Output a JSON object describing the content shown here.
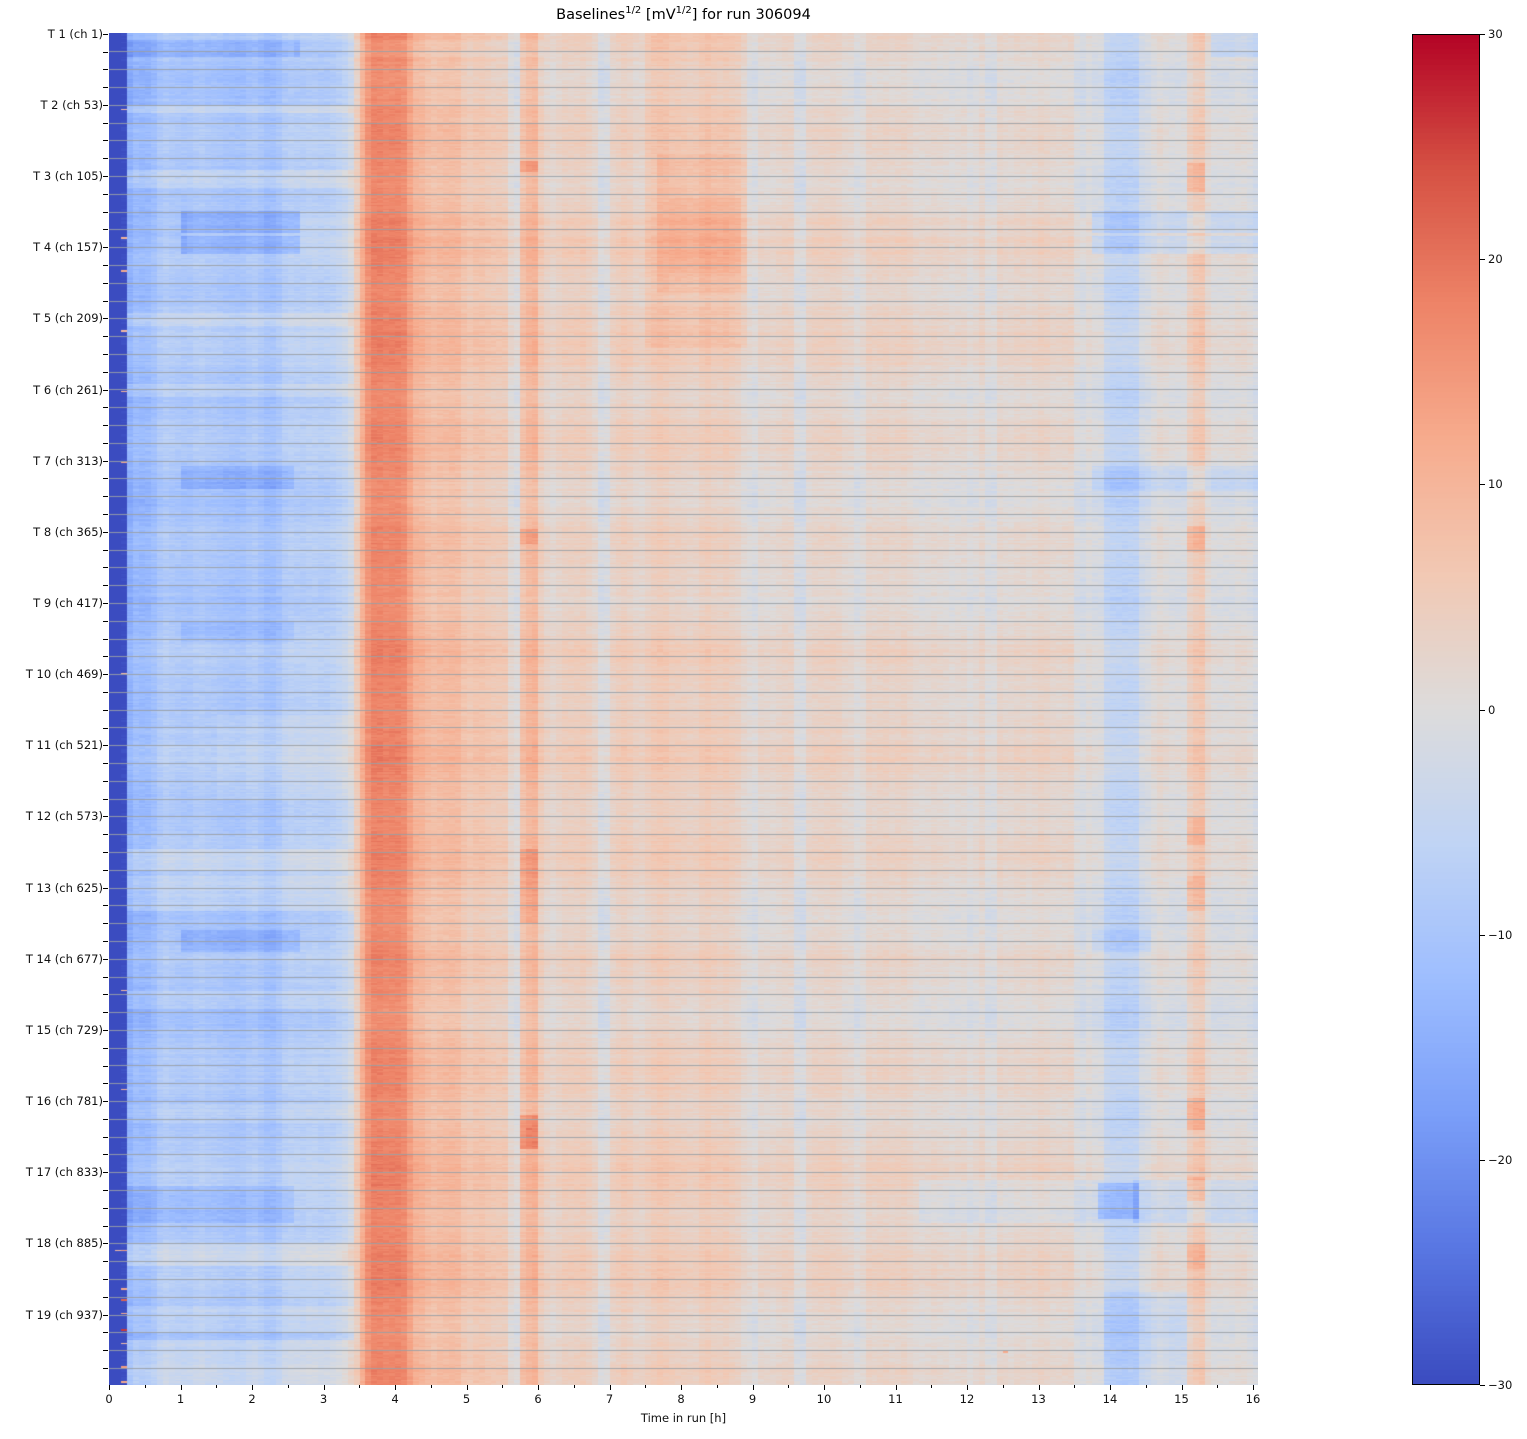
{
  "chart_data": {
    "type": "heatmap",
    "title_plain": "Baselines^(1/2) [mV^(1/2)] for run 306094",
    "title_parts": [
      {
        "text": "Baselines"
      },
      {
        "sup": "1/2"
      },
      {
        "text": " [mV"
      },
      {
        "sup": "1/2"
      },
      {
        "text": "] for run 306094"
      }
    ],
    "xlabel": "Time in run [h]",
    "x_axis": {
      "range": [
        0,
        16.07
      ],
      "major_ticks": [
        0,
        1,
        2,
        3,
        4,
        5,
        6,
        7,
        8,
        9,
        10,
        11,
        12,
        13,
        14,
        15,
        16
      ],
      "major_tick_labels": [
        "0",
        "1",
        "2",
        "3",
        "4",
        "5",
        "6",
        "7",
        "8",
        "9",
        "10",
        "11",
        "12",
        "13",
        "14",
        "15",
        "16"
      ],
      "minor_tick_step": 0.5
    },
    "y_axis": {
      "groups": [
        {
          "label": "T 1 (ch 1)",
          "channel": 1
        },
        {
          "label": "T 2 (ch 53)",
          "channel": 53
        },
        {
          "label": "T 3 (ch 105)",
          "channel": 105
        },
        {
          "label": "T 4 (ch 157)",
          "channel": 157
        },
        {
          "label": "T 5 (ch 209)",
          "channel": 209
        },
        {
          "label": "T 6 (ch 261)",
          "channel": 261
        },
        {
          "label": "T 7 (ch 313)",
          "channel": 313
        },
        {
          "label": "T 8 (ch 365)",
          "channel": 365
        },
        {
          "label": "T 9 (ch 417)",
          "channel": 417
        },
        {
          "label": "T 10 (ch 469)",
          "channel": 469
        },
        {
          "label": "T 11 (ch 521)",
          "channel": 521
        },
        {
          "label": "T 12 (ch 573)",
          "channel": 573
        },
        {
          "label": "T 13 (ch 625)",
          "channel": 625
        },
        {
          "label": "T 14 (ch 677)",
          "channel": 677
        },
        {
          "label": "T 15 (ch 729)",
          "channel": 729
        },
        {
          "label": "T 16 (ch 781)",
          "channel": 781
        },
        {
          "label": "T 17 (ch 833)",
          "channel": 833
        },
        {
          "label": "T 18 (ch 885)",
          "channel": 885
        },
        {
          "label": "T 19 (ch 937)",
          "channel": 937
        }
      ],
      "channels_total": 988,
      "channels_per_group": 52,
      "tick_step_channels": 13
    },
    "colorbar": {
      "vmin": -30,
      "vmax": 30,
      "ticks": [
        30,
        20,
        10,
        0,
        -10,
        -20,
        -30
      ],
      "tick_labels": [
        "30",
        "20",
        "10",
        "0",
        "−10",
        "−20",
        "−30"
      ],
      "position": "right"
    },
    "colormap": {
      "name": "coolwarm",
      "stops": [
        "#3b4cc0",
        "#5977e3",
        "#7b9ff9",
        "#9ebeff",
        "#c0d4f5",
        "#dddcdc",
        "#f2c9b4",
        "#f7ac8e",
        "#ee8468",
        "#d65244",
        "#b40426"
      ]
    },
    "grid": {
      "horizontal_every_channels": 13,
      "color": "#9aa0a5",
      "alpha": 0.9
    },
    "model": {
      "seed": 306094,
      "time_bins": 193,
      "dark_until_t": 0.167,
      "dark_value": -30,
      "time_profile": [
        [
          0.0,
          -30
        ],
        [
          0.23,
          -30
        ],
        [
          0.3,
          -12
        ],
        [
          0.6,
          -10.5
        ],
        [
          1.2,
          -10
        ],
        [
          2.2,
          -9
        ],
        [
          3.0,
          -7
        ],
        [
          3.35,
          -3
        ],
        [
          3.5,
          10
        ],
        [
          3.65,
          17
        ],
        [
          3.95,
          18
        ],
        [
          4.15,
          16
        ],
        [
          4.3,
          9
        ],
        [
          4.7,
          8
        ],
        [
          5.2,
          6
        ],
        [
          5.7,
          4.5
        ],
        [
          6.3,
          3.2
        ],
        [
          7.0,
          3.2
        ],
        [
          7.8,
          4
        ],
        [
          8.3,
          4.5
        ],
        [
          8.8,
          3.2
        ],
        [
          9.3,
          2.5
        ],
        [
          10.5,
          2.8
        ],
        [
          11.5,
          2.3
        ],
        [
          12.5,
          2.3
        ],
        [
          13.4,
          2
        ],
        [
          13.9,
          0.8
        ],
        [
          14.05,
          -1.8
        ],
        [
          14.35,
          -1.8
        ],
        [
          14.6,
          0.3
        ],
        [
          15.0,
          1.2
        ],
        [
          15.2,
          3
        ],
        [
          15.4,
          0.8
        ],
        [
          15.7,
          0.3
        ],
        [
          16.07,
          -0.3
        ]
      ],
      "column_noise_amp": 2.3,
      "row_noise_amp": 1.0,
      "cell_noise_amp": 1.0,
      "features": [
        [
          0.28,
          2.6,
          5,
          17,
          -4.5
        ],
        [
          2.6,
          6.0,
          5,
          17,
          -1.8
        ],
        [
          0.28,
          1.05,
          130,
          161,
          -2
        ],
        [
          1.05,
          2.6,
          130,
          146,
          -6.5
        ],
        [
          1.05,
          2.6,
          148,
          161,
          -6.5
        ],
        [
          1.0,
          2.55,
          316,
          333,
          -4.5
        ],
        [
          1.0,
          2.6,
          655,
          671,
          -4.5
        ],
        [
          1.0,
          2.5,
          430,
          445,
          -3
        ],
        [
          0.3,
          2.55,
          842,
          869,
          -3.5
        ],
        [
          13.75,
          16.07,
          130,
          146,
          -5.5
        ],
        [
          13.75,
          16.07,
          148,
          161,
          -5.5
        ],
        [
          13.8,
          16.07,
          316,
          334,
          -3.5
        ],
        [
          11.4,
          13.85,
          838,
          869,
          -2.5
        ],
        [
          13.85,
          14.4,
          840,
          866,
          -8
        ],
        [
          14.4,
          16.07,
          838,
          869,
          -4
        ],
        [
          13.8,
          14.5,
          655,
          671,
          -3
        ],
        [
          13.95,
          15.05,
          920,
          988,
          -3
        ],
        [
          15.45,
          16.07,
          0,
          17,
          -4.5
        ],
        [
          13.95,
          16.07,
          0,
          988,
          -0.8
        ],
        [
          0.25,
          3.4,
          52,
          58,
          4
        ],
        [
          0.25,
          3.4,
          100,
          113,
          4.5
        ],
        [
          0.25,
          3.4,
          204,
          214,
          3.5
        ],
        [
          0.25,
          3.4,
          256,
          266,
          3.5
        ],
        [
          0.3,
          3.4,
          596,
          612,
          3.5
        ],
        [
          0.3,
          3.4,
          616,
          641,
          3.5
        ],
        [
          0.25,
          3.4,
          884,
          901,
          4.5
        ],
        [
          0.25,
          3.4,
          930,
          950,
          3.5
        ],
        [
          0.3,
          3.4,
          955,
          988,
          4.5
        ],
        [
          1.5,
          3.4,
          498,
          560,
          2
        ],
        [
          0.3,
          3.4,
          700,
          713,
          2.5
        ],
        [
          0.3,
          3.4,
          782,
          796,
          2.5
        ],
        [
          7.5,
          8.9,
          0,
          230,
          2
        ],
        [
          7.7,
          8.85,
          88,
          190,
          2.5
        ],
        [
          7.9,
          8.8,
          120,
          175,
          1.5
        ],
        [
          5.8,
          5.94,
          0,
          988,
          4
        ],
        [
          5.8,
          5.94,
          93,
          101,
          6
        ],
        [
          5.75,
          5.99,
          790,
          815,
          8
        ],
        [
          5.8,
          5.94,
          596,
          650,
          4.5
        ],
        [
          5.8,
          5.94,
          362,
          373,
          4.5
        ],
        [
          15.08,
          15.3,
          0,
          988,
          3
        ],
        [
          15.08,
          15.3,
          95,
          116,
          5.5
        ],
        [
          15.08,
          15.3,
          360,
          379,
          5
        ],
        [
          15.08,
          15.3,
          572,
          593,
          4.5
        ],
        [
          15.08,
          15.3,
          616,
          641,
          4.5
        ],
        [
          15.08,
          15.3,
          778,
          801,
          6.5
        ],
        [
          15.08,
          15.3,
          836,
          853,
          5
        ],
        [
          15.08,
          15.3,
          884,
          903,
          4
        ],
        [
          13.98,
          14.38,
          0,
          988,
          -3
        ],
        [
          6.86,
          6.96,
          0,
          988,
          -3.5
        ],
        [
          9.6,
          9.7,
          0,
          988,
          -3
        ],
        [
          5.62,
          5.72,
          0,
          988,
          -3
        ],
        [
          10.42,
          10.52,
          0,
          988,
          -2.5
        ],
        [
          12.28,
          12.38,
          0,
          988,
          -2.5
        ],
        [
          13.53,
          13.62,
          0,
          988,
          -2.5
        ],
        [
          8.9,
          9.0,
          0,
          988,
          -2
        ],
        [
          11.8,
          11.9,
          0,
          988,
          -2
        ]
      ],
      "hot_cells": [
        [
          0.21,
          56,
          8
        ],
        [
          0.21,
          150,
          10
        ],
        [
          0.21,
          174,
          12
        ],
        [
          0.21,
          218,
          9
        ],
        [
          0.21,
          262,
          10
        ],
        [
          0.21,
          314,
          12
        ],
        [
          0.21,
          468,
          8
        ],
        [
          0.21,
          700,
          9
        ],
        [
          0.21,
          772,
          10
        ],
        [
          0.21,
          890,
          14
        ],
        [
          0.21,
          918,
          12
        ],
        [
          0.21,
          926,
          22
        ],
        [
          0.21,
          936,
          12
        ],
        [
          0.21,
          948,
          26
        ],
        [
          0.21,
          958,
          8
        ],
        [
          0.21,
          963,
          28
        ],
        [
          0.21,
          975,
          14
        ],
        [
          0.21,
          986,
          12
        ],
        [
          0.13,
          890,
          9
        ],
        [
          12.52,
          964,
          12
        ],
        [
          5.86,
          801,
          20
        ],
        [
          5.86,
          806,
          19
        ],
        [
          15.2,
          786,
          13
        ]
      ]
    }
  }
}
